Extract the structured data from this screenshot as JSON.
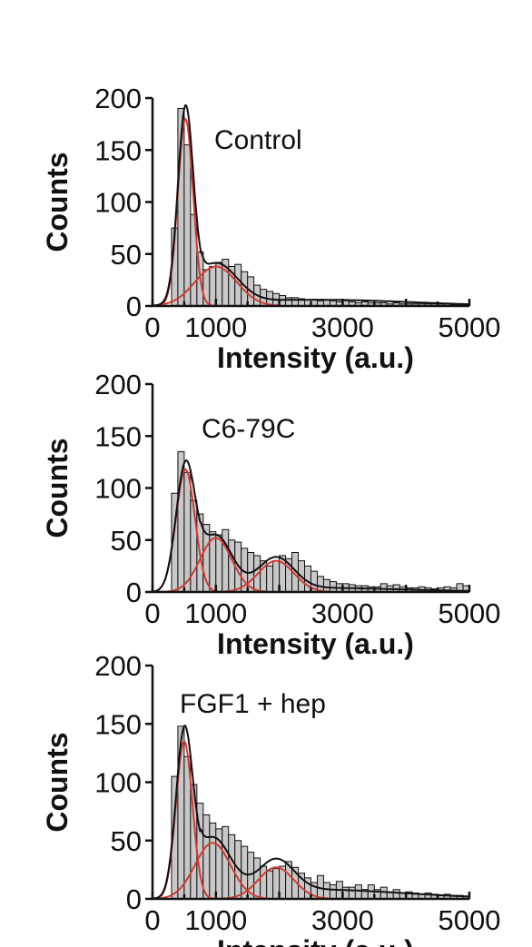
{
  "chart_data": [
    {
      "type": "bar",
      "label": "Control",
      "xlabel": "Intensity (a.u.)",
      "ylabel": "Counts",
      "xlim": [
        0,
        5000
      ],
      "ylim": [
        0,
        200
      ],
      "xticks": [
        0,
        1000,
        3000,
        5000
      ],
      "xtick_labels": [
        "0",
        "1000",
        "3000",
        "5000"
      ],
      "yticks": [
        0,
        50,
        100,
        150,
        200
      ],
      "ytick_labels": [
        "0",
        "50",
        "100",
        "150",
        "200"
      ],
      "bin_start": 300,
      "bin_width": 100,
      "values": [
        75,
        190,
        155,
        88,
        52,
        35,
        38,
        42,
        45,
        38,
        40,
        33,
        28,
        20,
        16,
        14,
        12,
        10,
        8,
        8,
        7,
        6,
        6,
        5,
        6,
        5,
        4,
        5,
        4,
        3,
        4,
        3,
        3,
        3,
        2,
        3,
        2,
        2,
        2,
        2,
        2,
        2,
        1,
        2,
        1,
        1,
        1
      ],
      "fit_components": [
        {
          "amplitude": 180,
          "center": 520,
          "sigma": 120
        },
        {
          "amplitude": 38,
          "center": 1000,
          "sigma": 330
        }
      ],
      "fit_tail": {
        "amplitude": 6,
        "center": 2600,
        "sigma": 1500
      }
    },
    {
      "type": "bar",
      "label": "C6-79C",
      "xlabel": "Intensity (a.u.)",
      "ylabel": "Counts",
      "xlim": [
        0,
        5000
      ],
      "ylim": [
        0,
        200
      ],
      "xticks": [
        0,
        1000,
        3000,
        5000
      ],
      "xtick_labels": [
        "0",
        "1000",
        "3000",
        "5000"
      ],
      "yticks": [
        0,
        50,
        100,
        150,
        200
      ],
      "ytick_labels": [
        "0",
        "50",
        "100",
        "150",
        "200"
      ],
      "bin_start": 300,
      "bin_width": 100,
      "values": [
        95,
        135,
        115,
        88,
        75,
        65,
        58,
        55,
        60,
        50,
        48,
        42,
        38,
        35,
        30,
        25,
        30,
        35,
        32,
        38,
        30,
        25,
        20,
        15,
        12,
        10,
        8,
        8,
        7,
        6,
        6,
        5,
        5,
        8,
        6,
        7,
        5,
        4,
        4,
        5,
        4,
        3,
        4,
        5,
        4,
        8,
        6
      ],
      "fit_components": [
        {
          "amplitude": 118,
          "center": 520,
          "sigma": 150
        },
        {
          "amplitude": 52,
          "center": 1000,
          "sigma": 250
        },
        {
          "amplitude": 30,
          "center": 1950,
          "sigma": 280
        }
      ],
      "fit_tail": {
        "amplitude": 4,
        "center": 2500,
        "sigma": 1500
      }
    },
    {
      "type": "bar",
      "label": "FGF1 + hep",
      "xlabel": "Intensity (a.u.)",
      "ylabel": "Counts",
      "xlim": [
        0,
        5000
      ],
      "ylim": [
        0,
        200
      ],
      "xticks": [
        0,
        1000,
        3000,
        5000
      ],
      "xtick_labels": [
        "0",
        "1000",
        "3000",
        "5000"
      ],
      "yticks": [
        0,
        50,
        100,
        150,
        200
      ],
      "ytick_labels": [
        "0",
        "50",
        "100",
        "150",
        "200"
      ],
      "bin_start": 300,
      "bin_width": 100,
      "values": [
        105,
        148,
        122,
        98,
        82,
        72,
        65,
        60,
        62,
        55,
        50,
        45,
        40,
        35,
        28,
        24,
        26,
        28,
        32,
        27,
        22,
        18,
        14,
        20,
        14,
        12,
        15,
        10,
        10,
        12,
        8,
        12,
        8,
        10,
        6,
        8,
        5,
        6,
        5,
        4,
        5,
        4,
        3,
        4,
        3,
        3,
        2
      ],
      "fit_components": [
        {
          "amplitude": 135,
          "center": 500,
          "sigma": 130
        },
        {
          "amplitude": 48,
          "center": 950,
          "sigma": 280
        },
        {
          "amplitude": 27,
          "center": 1950,
          "sigma": 280
        }
      ],
      "fit_tail": {
        "amplitude": 8,
        "center": 2500,
        "sigma": 1500
      }
    }
  ]
}
